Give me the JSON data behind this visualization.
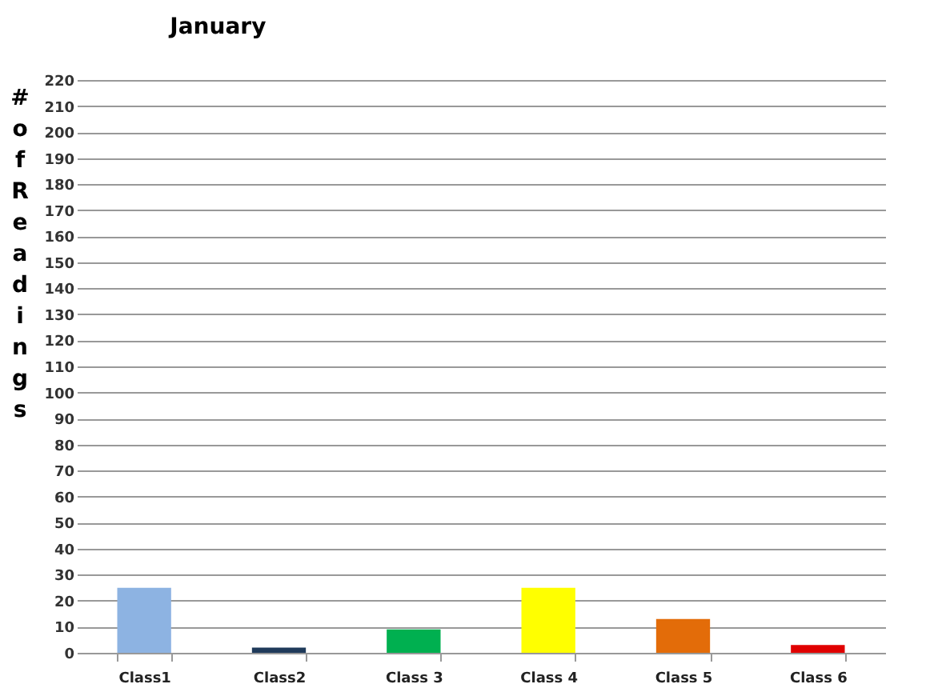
{
  "chart_data": {
    "type": "bar",
    "title": "January",
    "ylabel": "# of Readings",
    "categories": [
      "Class1",
      "Class2",
      "Class 3",
      "Class 4",
      "Class 5",
      "Class 6"
    ],
    "values": [
      25,
      2,
      9,
      25,
      13,
      3
    ],
    "colors": [
      "#8db3e2",
      "#1f3a5a",
      "#00b050",
      "#ffff00",
      "#e36c09",
      "#e00000"
    ],
    "ylim": [
      0,
      220
    ],
    "yticks": [
      0,
      10,
      20,
      30,
      40,
      50,
      60,
      70,
      80,
      90,
      100,
      110,
      120,
      130,
      140,
      150,
      160,
      170,
      180,
      190,
      200,
      210,
      220
    ],
    "grid": "y"
  }
}
